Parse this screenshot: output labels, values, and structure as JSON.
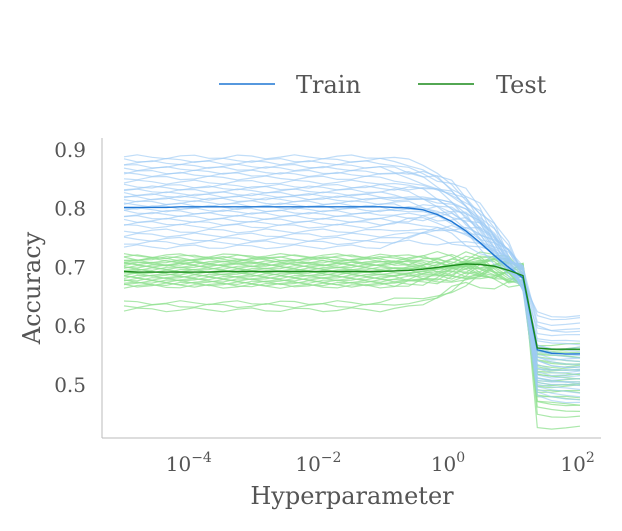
{
  "chart_data": {
    "type": "line",
    "title": "",
    "xlabel": "Hyperparameter",
    "ylabel": "Accuracy",
    "xscale": "log",
    "xlim": [
      1e-05,
      150
    ],
    "ylim": [
      0.41,
      0.92
    ],
    "x": [
      1e-05,
      1.6e-05,
      2.7e-05,
      4.5e-05,
      7.4e-05,
      0.000123,
      0.000204,
      0.000339,
      0.000563,
      0.000935,
      0.00155,
      0.00258,
      0.00428,
      0.00711,
      0.0118,
      0.0196,
      0.0326,
      0.0541,
      0.0898,
      0.149,
      0.248,
      0.412,
      0.684,
      1.14,
      1.89,
      3.13,
      5.21,
      8.65,
      14.4,
      23.9,
      39.7,
      65.9,
      109
    ],
    "xticks": [
      {
        "value": 0.0001,
        "label": "10",
        "exp": "−4"
      },
      {
        "value": 0.01,
        "label": "10",
        "exp": "−2"
      },
      {
        "value": 1,
        "label": "10",
        "exp": "0"
      },
      {
        "value": 100,
        "label": "10",
        "exp": "2"
      }
    ],
    "yticks": [
      0.5,
      0.6,
      0.7,
      0.8,
      0.9
    ],
    "ytick_labels": [
      "0.5",
      "0.6",
      "0.7",
      "0.8",
      "0.9"
    ],
    "series": [
      {
        "name": "Train",
        "color": "#1f77d4",
        "values": [
          0.802,
          0.802,
          0.802,
          0.802,
          0.803,
          0.803,
          0.803,
          0.803,
          0.803,
          0.803,
          0.803,
          0.803,
          0.803,
          0.803,
          0.803,
          0.803,
          0.803,
          0.803,
          0.803,
          0.802,
          0.801,
          0.798,
          0.79,
          0.778,
          0.762,
          0.742,
          0.72,
          0.7,
          0.682,
          0.56,
          0.554,
          0.553,
          0.553
        ]
      },
      {
        "name": "Test",
        "color": "#1a8a1a",
        "values": [
          0.693,
          0.692,
          0.692,
          0.692,
          0.692,
          0.692,
          0.692,
          0.693,
          0.693,
          0.693,
          0.693,
          0.693,
          0.693,
          0.693,
          0.693,
          0.693,
          0.693,
          0.693,
          0.693,
          0.694,
          0.695,
          0.697,
          0.7,
          0.703,
          0.706,
          0.705,
          0.702,
          0.695,
          0.686,
          0.563,
          0.561,
          0.561,
          0.561
        ]
      }
    ],
    "individual_runs": {
      "train_color": "#9ecbf5",
      "test_color": "#8fe08f",
      "train_plateau": [
        0.888,
        0.882,
        0.878,
        0.872,
        0.868,
        0.862,
        0.858,
        0.852,
        0.845,
        0.838,
        0.835,
        0.83,
        0.825,
        0.822,
        0.818,
        0.815,
        0.81,
        0.806,
        0.802,
        0.798,
        0.794,
        0.79,
        0.785,
        0.78,
        0.775,
        0.77,
        0.762,
        0.755,
        0.748,
        0.742,
        0.735
      ],
      "train_end": [
        0.62,
        0.6,
        0.58,
        0.565,
        0.55,
        0.54,
        0.53,
        0.52,
        0.51,
        0.5,
        0.49,
        0.48,
        0.625,
        0.61,
        0.59,
        0.575,
        0.555,
        0.545,
        0.535,
        0.525,
        0.515,
        0.505,
        0.495,
        0.485,
        0.6,
        0.57,
        0.55,
        0.53,
        0.51,
        0.56,
        0.54
      ],
      "test_plateau": [
        0.718,
        0.715,
        0.712,
        0.71,
        0.708,
        0.706,
        0.704,
        0.702,
        0.7,
        0.698,
        0.696,
        0.694,
        0.692,
        0.69,
        0.688,
        0.686,
        0.684,
        0.682,
        0.68,
        0.678,
        0.676,
        0.674,
        0.672,
        0.67,
        0.668,
        0.64,
        0.635,
        0.628,
        0.72,
        0.714,
        0.706
      ],
      "test_end": [
        0.565,
        0.56,
        0.555,
        0.55,
        0.545,
        0.54,
        0.535,
        0.53,
        0.525,
        0.52,
        0.515,
        0.51,
        0.505,
        0.5,
        0.49,
        0.48,
        0.47,
        0.46,
        0.45,
        0.43,
        0.57,
        0.56,
        0.55,
        0.54,
        0.53,
        0.52,
        0.51,
        0.5,
        0.49,
        0.48,
        0.47
      ]
    },
    "legend": {
      "placement": "top-center",
      "entries": [
        "Train",
        "Test"
      ]
    },
    "grid": false
  }
}
